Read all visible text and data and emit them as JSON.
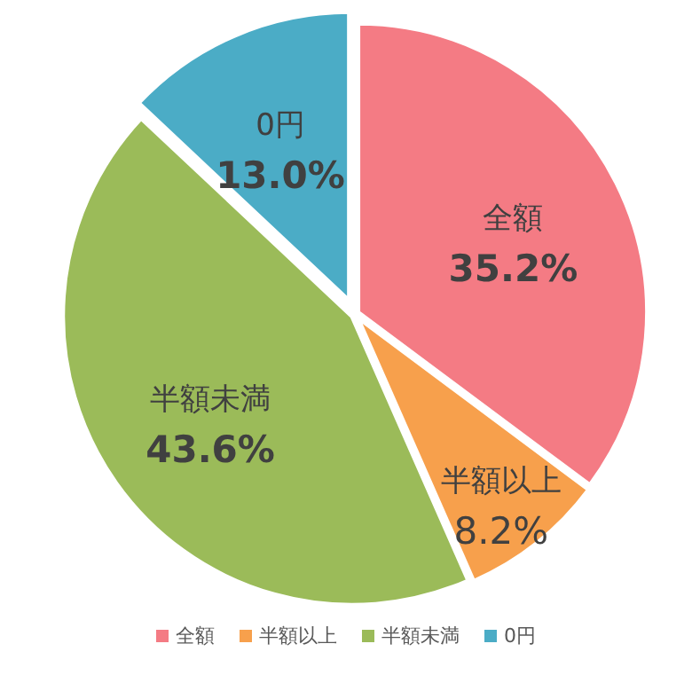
{
  "chart_data": {
    "type": "pie",
    "categories": [
      "全額",
      "半額以上",
      "半額未満",
      "0円"
    ],
    "values": [
      35.2,
      8.2,
      43.6,
      13.0
    ],
    "value_labels": [
      "35.2%",
      "8.2%",
      "43.6%",
      "13.0%"
    ],
    "colors": [
      "#f47b84",
      "#f7a04c",
      "#9bbb59",
      "#4bacc6"
    ],
    "legend": "bottom"
  }
}
